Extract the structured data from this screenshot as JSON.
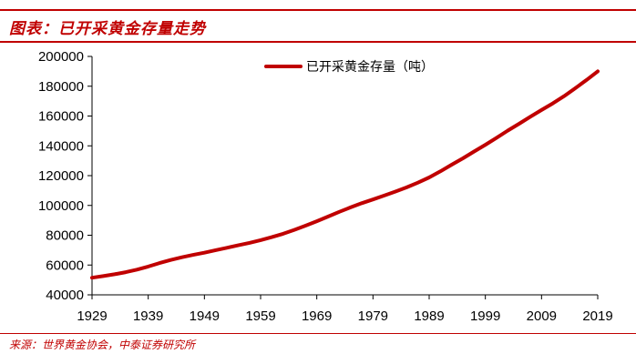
{
  "figure": {
    "title": "图表：已开采黄金存量走势",
    "source": "来源：世界黄金协会，中泰证券研究所"
  },
  "colors": {
    "accent": "#c00000",
    "series_line": "#c00000",
    "axis": "#000000"
  },
  "chart_data": {
    "type": "line",
    "title": "",
    "xlabel": "",
    "ylabel": "",
    "xlim": [
      1929,
      2019
    ],
    "ylim": [
      40000,
      200000
    ],
    "x_ticks": [
      "1929",
      "1939",
      "1949",
      "1959",
      "1969",
      "1979",
      "1989",
      "1999",
      "2009",
      "2019"
    ],
    "y_ticks": [
      "40000",
      "60000",
      "80000",
      "100000",
      "120000",
      "140000",
      "160000",
      "180000",
      "200000"
    ],
    "grid": false,
    "legend_position": "top-right",
    "x": [
      1929,
      1931,
      1933,
      1935,
      1937,
      1939,
      1941,
      1943,
      1945,
      1947,
      1949,
      1951,
      1953,
      1955,
      1957,
      1959,
      1961,
      1963,
      1965,
      1967,
      1969,
      1971,
      1973,
      1975,
      1977,
      1979,
      1981,
      1983,
      1985,
      1987,
      1989,
      1991,
      1993,
      1995,
      1997,
      1999,
      2001,
      2003,
      2005,
      2007,
      2009,
      2011,
      2013,
      2015,
      2017,
      2019
    ],
    "series": [
      {
        "name": "已开采黄金存量（吨）",
        "values": [
          51500,
          52600,
          53800,
          55200,
          56900,
          59000,
          61300,
          63400,
          65200,
          66800,
          68300,
          70000,
          71600,
          73200,
          74900,
          76700,
          78700,
          81000,
          83600,
          86400,
          89400,
          92500,
          95700,
          98700,
          101500,
          104000,
          106600,
          109300,
          112100,
          115300,
          118800,
          122900,
          127300,
          131600,
          136200,
          140700,
          145400,
          150200,
          154800,
          159500,
          164000,
          168500,
          173300,
          178600,
          184200,
          190000
        ]
      }
    ]
  }
}
